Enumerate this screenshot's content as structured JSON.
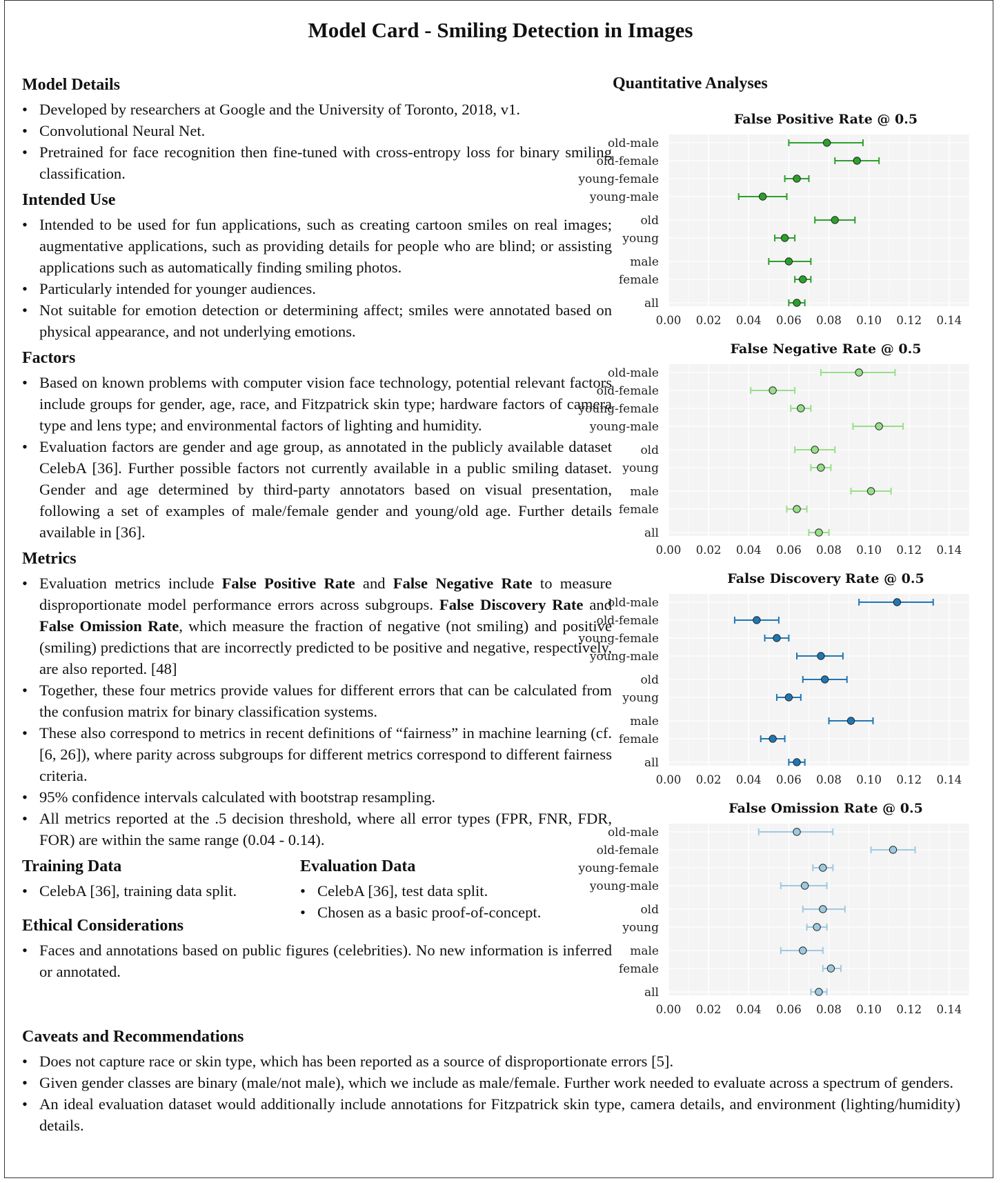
{
  "title": "Model Card - Smiling Detection in Images",
  "sections": {
    "model_details": {
      "heading": "Model Details",
      "items": [
        "Developed by researchers at Google and the University of Toronto, 2018, v1.",
        "Convolutional Neural Net.",
        "Pretrained for face recognition then fine-tuned with cross-entropy loss for binary smiling classification."
      ]
    },
    "intended_use": {
      "heading": "Intended Use",
      "items": [
        "Intended to be used for fun applications, such as creating cartoon smiles on real images; augmentative applications, such as providing details for people who are blind; or assisting applications such as automatically finding smiling photos.",
        "Particularly intended for younger audiences.",
        "Not suitable for emotion detection or determining affect; smiles were annotated based on physical appearance, and not underlying emotions."
      ]
    },
    "factors": {
      "heading": "Factors",
      "items": [
        "Based on known problems with computer vision face technology, potential relevant factors include groups for gender, age, race, and Fitzpatrick skin type; hardware factors of camera type and lens type; and environmental factors of lighting and humidity.",
        "Evaluation factors are gender and age group, as annotated in the publicly available dataset CelebA [36]. Further possible factors not currently available in a public smiling dataset. Gender and age determined by third-party annotators based on visual presentation, following a set of examples of male/female gender and young/old age. Further details available in [36]."
      ]
    },
    "metrics": {
      "heading": "Metrics",
      "item1_a": "Evaluation metrics include ",
      "item1_b1": "False Positive Rate",
      "item1_c": " and ",
      "item1_b2": "False Negative Rate",
      "item1_d": " to measure disproportionate model performance errors across subgroups. ",
      "item1_b3": "False Discovery Rate",
      "item1_e": " and ",
      "item1_b4": "False Omission Rate",
      "item1_f": ", which measure the fraction of negative (not smiling) and positive (smiling) predictions that are incorrectly predicted to be positive and negative, respectively, are also reported. [48]",
      "items": [
        "Together, these four metrics provide values for different errors that can be calculated from the confusion matrix for binary classification systems.",
        "These also correspond to metrics in recent definitions of “fairness” in machine learning (cf. [6, 26]), where parity across subgroups for different metrics correspond to different fairness criteria.",
        "95% confidence intervals calculated with bootstrap resampling.",
        "All metrics reported at the .5 decision threshold, where all error types (FPR, FNR, FDR, FOR) are within the same range (0.04 - 0.14)."
      ]
    },
    "training_data": {
      "heading": "Training Data",
      "items": [
        "CelebA [36], training data split."
      ]
    },
    "evaluation_data": {
      "heading": "Evaluation Data",
      "items": [
        "CelebA [36], test data split.",
        "Chosen as a basic proof-of-concept."
      ]
    },
    "ethical": {
      "heading": "Ethical Considerations",
      "items": [
        "Faces and annotations based on public figures (celebrities). No new information is inferred or annotated."
      ]
    },
    "caveats": {
      "heading": "Caveats and Recommendations",
      "items": [
        "Does not capture race or skin type, which has been reported as a source of disproportionate errors [5].",
        "Given gender classes are binary (male/not male), which we include as male/female. Further work needed to evaluate across a spectrum of genders.",
        "An ideal evaluation dataset would additionally include annotations for Fitzpatrick skin type, camera details, and environment (lighting/humidity) details."
      ]
    }
  },
  "quantitative_heading": "Quantitative Analyses",
  "chart_data": [
    {
      "type": "scatter",
      "title": "False Positive Rate @ 0.5",
      "color": "#2ca02c",
      "categories": [
        "old-male",
        "old-female",
        "young-female",
        "young-male",
        "old",
        "young",
        "male",
        "female",
        "all"
      ],
      "values": [
        0.079,
        0.094,
        0.064,
        0.047,
        0.083,
        0.058,
        0.06,
        0.067,
        0.064
      ],
      "ci_low": [
        0.06,
        0.083,
        0.058,
        0.035,
        0.073,
        0.053,
        0.05,
        0.063,
        0.06
      ],
      "ci_high": [
        0.097,
        0.105,
        0.07,
        0.059,
        0.093,
        0.063,
        0.071,
        0.071,
        0.068
      ],
      "xlim": [
        0.0,
        0.15
      ],
      "xticks": [
        "0.00",
        "0.02",
        "0.04",
        "0.06",
        "0.08",
        "0.10",
        "0.12",
        "0.14"
      ]
    },
    {
      "type": "scatter",
      "title": "False Negative Rate @ 0.5",
      "color": "#98df8a",
      "categories": [
        "old-male",
        "old-female",
        "young-female",
        "young-male",
        "old",
        "young",
        "male",
        "female",
        "all"
      ],
      "values": [
        0.095,
        0.052,
        0.066,
        0.105,
        0.073,
        0.076,
        0.101,
        0.064,
        0.075
      ],
      "ci_low": [
        0.076,
        0.041,
        0.061,
        0.092,
        0.063,
        0.071,
        0.091,
        0.059,
        0.07
      ],
      "ci_high": [
        0.113,
        0.063,
        0.071,
        0.117,
        0.083,
        0.081,
        0.111,
        0.069,
        0.08
      ],
      "xlim": [
        0.0,
        0.15
      ],
      "xticks": [
        "0.00",
        "0.02",
        "0.04",
        "0.06",
        "0.08",
        "0.10",
        "0.12",
        "0.14"
      ]
    },
    {
      "type": "scatter",
      "title": "False Discovery Rate @ 0.5",
      "color": "#1f77b4",
      "categories": [
        "old-male",
        "old-female",
        "young-female",
        "young-male",
        "old",
        "young",
        "male",
        "female",
        "all"
      ],
      "values": [
        0.114,
        0.044,
        0.054,
        0.076,
        0.078,
        0.06,
        0.091,
        0.052,
        0.064
      ],
      "ci_low": [
        0.095,
        0.033,
        0.048,
        0.064,
        0.067,
        0.054,
        0.08,
        0.046,
        0.06
      ],
      "ci_high": [
        0.132,
        0.055,
        0.06,
        0.087,
        0.089,
        0.066,
        0.102,
        0.058,
        0.068
      ],
      "xlim": [
        0.0,
        0.15
      ],
      "xticks": [
        "0.00",
        "0.02",
        "0.04",
        "0.06",
        "0.08",
        "0.10",
        "0.12",
        "0.14"
      ]
    },
    {
      "type": "scatter",
      "title": "False Omission Rate @ 0.5",
      "color": "#9ecae1",
      "categories": [
        "old-male",
        "old-female",
        "young-female",
        "young-male",
        "old",
        "young",
        "male",
        "female",
        "all"
      ],
      "values": [
        0.064,
        0.112,
        0.077,
        0.068,
        0.077,
        0.074,
        0.067,
        0.081,
        0.075
      ],
      "ci_low": [
        0.045,
        0.101,
        0.072,
        0.056,
        0.067,
        0.069,
        0.056,
        0.077,
        0.071
      ],
      "ci_high": [
        0.082,
        0.123,
        0.082,
        0.079,
        0.088,
        0.079,
        0.077,
        0.086,
        0.079
      ],
      "xlim": [
        0.0,
        0.15
      ],
      "xticks": [
        "0.00",
        "0.02",
        "0.04",
        "0.06",
        "0.08",
        "0.10",
        "0.12",
        "0.14"
      ]
    }
  ]
}
